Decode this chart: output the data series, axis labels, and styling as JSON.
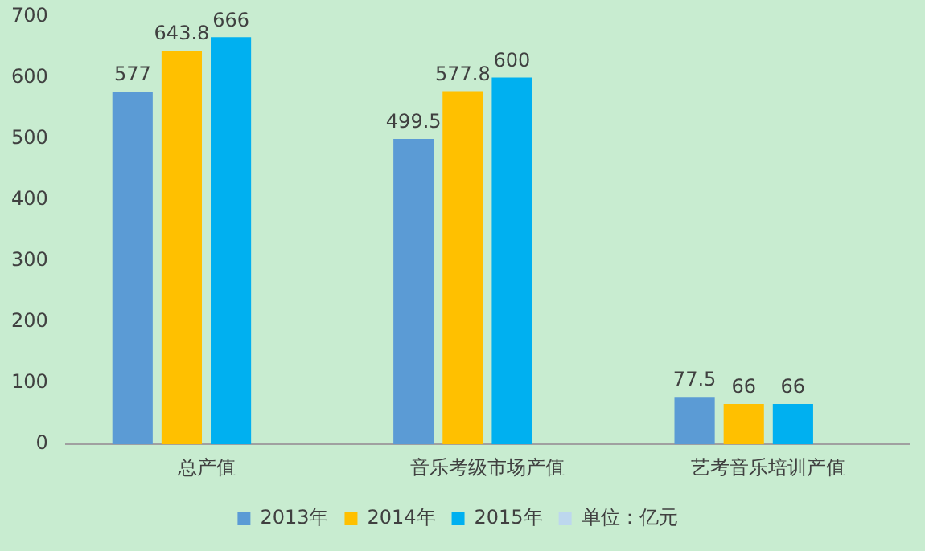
{
  "chart_data": {
    "type": "bar",
    "categories": [
      "总产值",
      "音乐考级市场产值",
      "艺考音乐培训产值"
    ],
    "series": [
      {
        "name": "2013年",
        "color": "#5b9bd5",
        "values": [
          577,
          499.5,
          77.5
        ]
      },
      {
        "name": "2014年",
        "color": "#ffc000",
        "values": [
          643.8,
          577.8,
          66
        ]
      },
      {
        "name": "2015年",
        "color": "#00b0f0",
        "values": [
          666,
          600,
          66
        ]
      },
      {
        "name": "单位：亿元",
        "color": "#bdd7ee",
        "values": [
          null,
          null,
          null
        ]
      }
    ],
    "ylim": [
      0,
      700
    ],
    "yticks": [
      0,
      100,
      200,
      300,
      400,
      500,
      600,
      700
    ],
    "grid": false,
    "legend": "bottom",
    "data_labels": true
  }
}
